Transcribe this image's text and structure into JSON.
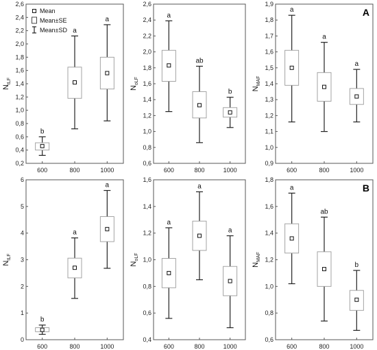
{
  "legend": {
    "mean": "Mean",
    "se": "Mean±SE",
    "sd": "Mean±SD"
  },
  "chart_data": [
    {
      "type": "box",
      "panel_label": "",
      "ylabel_main": "N",
      "ylabel_sub": "tLF",
      "categories": [
        "600",
        "800",
        "1000"
      ],
      "ylim": [
        0.2,
        2.6
      ],
      "yticks": [
        "0,2",
        "0,4",
        "0,6",
        "0,8",
        "1,0",
        "1,2",
        "1,4",
        "1,6",
        "1,8",
        "2,0",
        "2,2",
        "2,4",
        "2,6"
      ],
      "ytick_values": [
        0.2,
        0.4,
        0.6,
        0.8,
        1.0,
        1.2,
        1.4,
        1.6,
        1.8,
        2.0,
        2.2,
        2.4,
        2.6
      ],
      "groups": [
        {
          "mean": 0.46,
          "se_low": 0.4,
          "se_high": 0.51,
          "sd_low": 0.32,
          "sd_high": 0.6,
          "letter": "b"
        },
        {
          "mean": 1.42,
          "se_low": 1.18,
          "se_high": 1.65,
          "sd_low": 0.72,
          "sd_high": 2.12,
          "letter": "a"
        },
        {
          "mean": 1.56,
          "se_low": 1.32,
          "se_high": 1.8,
          "sd_low": 0.84,
          "sd_high": 2.29,
          "letter": "a"
        }
      ]
    },
    {
      "type": "box",
      "panel_label": "",
      "ylabel_main": "N",
      "ylabel_sub": "oLF",
      "categories": [
        "600",
        "800",
        "1000"
      ],
      "ylim": [
        0.6,
        2.6
      ],
      "yticks": [
        "0,6",
        "0,8",
        "1,0",
        "1,2",
        "1,4",
        "1,6",
        "1,8",
        "2,0",
        "2,2",
        "2,4",
        "2,6"
      ],
      "ytick_values": [
        0.6,
        0.8,
        1.0,
        1.2,
        1.4,
        1.6,
        1.8,
        2.0,
        2.2,
        2.4,
        2.6
      ],
      "groups": [
        {
          "mean": 1.83,
          "se_low": 1.63,
          "se_high": 2.02,
          "sd_low": 1.25,
          "sd_high": 2.39,
          "letter": "a"
        },
        {
          "mean": 1.33,
          "se_low": 1.17,
          "se_high": 1.5,
          "sd_low": 0.86,
          "sd_high": 1.82,
          "letter": "ab"
        },
        {
          "mean": 1.24,
          "se_low": 1.18,
          "se_high": 1.3,
          "sd_low": 1.05,
          "sd_high": 1.43,
          "letter": "b"
        }
      ]
    },
    {
      "type": "box",
      "panel_label": "A",
      "ylabel_main": "N",
      "ylabel_sub": "MAF",
      "categories": [
        "600",
        "800",
        "1000"
      ],
      "ylim": [
        0.9,
        1.9
      ],
      "yticks": [
        "0,9",
        "1,0",
        "1,1",
        "1,2",
        "1,3",
        "1,4",
        "1,5",
        "1,6",
        "1,7",
        "1,8",
        "1,9"
      ],
      "ytick_values": [
        0.9,
        1.0,
        1.1,
        1.2,
        1.3,
        1.4,
        1.5,
        1.6,
        1.7,
        1.8,
        1.9
      ],
      "groups": [
        {
          "mean": 1.5,
          "se_low": 1.39,
          "se_high": 1.61,
          "sd_low": 1.16,
          "sd_high": 1.83,
          "letter": "a"
        },
        {
          "mean": 1.38,
          "se_low": 1.29,
          "se_high": 1.47,
          "sd_low": 1.1,
          "sd_high": 1.66,
          "letter": "a"
        },
        {
          "mean": 1.32,
          "se_low": 1.27,
          "se_high": 1.37,
          "sd_low": 1.16,
          "sd_high": 1.49,
          "letter": "a"
        }
      ]
    },
    {
      "type": "box",
      "panel_label": "",
      "ylabel_main": "N",
      "ylabel_sub": "tLF",
      "categories": [
        "600",
        "800",
        "1000"
      ],
      "ylim": [
        0,
        6
      ],
      "yticks": [
        "0",
        "1",
        "2",
        "3",
        "4",
        "5",
        "6"
      ],
      "ytick_values": [
        0,
        1,
        2,
        3,
        4,
        5,
        6
      ],
      "groups": [
        {
          "mean": 0.37,
          "se_low": 0.3,
          "se_high": 0.45,
          "sd_low": 0.2,
          "sd_high": 0.55,
          "letter": "b"
        },
        {
          "mean": 2.7,
          "se_low": 2.32,
          "se_high": 3.06,
          "sd_low": 1.55,
          "sd_high": 3.82,
          "letter": "a"
        },
        {
          "mean": 4.15,
          "se_low": 3.68,
          "se_high": 4.62,
          "sd_low": 2.68,
          "sd_high": 5.6,
          "letter": "a"
        }
      ]
    },
    {
      "type": "box",
      "panel_label": "",
      "ylabel_main": "N",
      "ylabel_sub": "oLF",
      "categories": [
        "600",
        "800",
        "1000"
      ],
      "ylim": [
        0.4,
        1.6
      ],
      "yticks": [
        "0,4",
        "0,6",
        "0,8",
        "1,0",
        "1,2",
        "1,4",
        "1,6"
      ],
      "ytick_values": [
        0.4,
        0.6,
        0.8,
        1.0,
        1.2,
        1.4,
        1.6
      ],
      "groups": [
        {
          "mean": 0.9,
          "se_low": 0.79,
          "se_high": 1.01,
          "sd_low": 0.56,
          "sd_high": 1.24,
          "letter": "a"
        },
        {
          "mean": 1.18,
          "se_low": 1.07,
          "se_high": 1.29,
          "sd_low": 0.85,
          "sd_high": 1.51,
          "letter": "a"
        },
        {
          "mean": 0.84,
          "se_low": 0.73,
          "se_high": 0.95,
          "sd_low": 0.49,
          "sd_high": 1.18,
          "letter": "a"
        }
      ]
    },
    {
      "type": "box",
      "panel_label": "B",
      "ylabel_main": "N",
      "ylabel_sub": "MAF",
      "categories": [
        "600",
        "800",
        "1000"
      ],
      "ylim": [
        0.6,
        1.8
      ],
      "yticks": [
        "0,6",
        "0,8",
        "1,0",
        "1,2",
        "1,4",
        "1,6",
        "1,8"
      ],
      "ytick_values": [
        0.6,
        0.8,
        1.0,
        1.2,
        1.4,
        1.6,
        1.8
      ],
      "groups": [
        {
          "mean": 1.36,
          "se_low": 1.25,
          "se_high": 1.47,
          "sd_low": 1.02,
          "sd_high": 1.7,
          "letter": "a"
        },
        {
          "mean": 1.13,
          "se_low": 1.0,
          "se_high": 1.26,
          "sd_low": 0.74,
          "sd_high": 1.52,
          "letter": "ab"
        },
        {
          "mean": 0.9,
          "se_low": 0.82,
          "se_high": 0.97,
          "sd_low": 0.67,
          "sd_high": 1.12,
          "letter": "b"
        }
      ]
    }
  ]
}
